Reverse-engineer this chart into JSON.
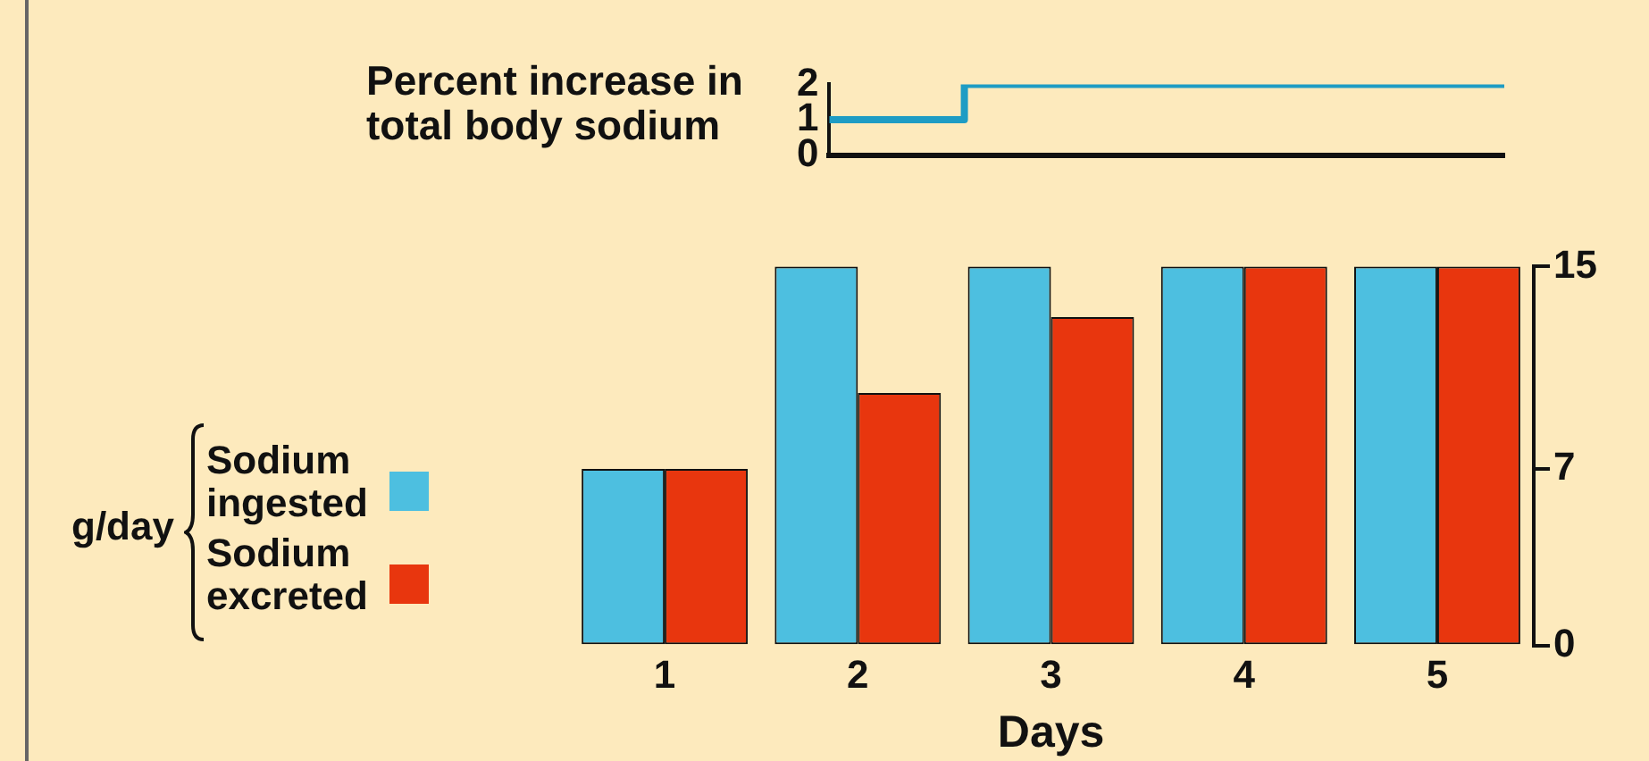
{
  "chart_data": [
    {
      "type": "step",
      "ylabel": "Percent increase in total body sodium",
      "categories": [
        null,
        null,
        null,
        null,
        null,
        null,
        null,
        null,
        null,
        null,
        null
      ],
      "series": [
        {
          "color": "#1e9cc4",
          "values": [
            1,
            1,
            1,
            2,
            2,
            2,
            2,
            2,
            2,
            2,
            2
          ]
        }
      ],
      "ylim": [
        0,
        2
      ],
      "yticks": [
        0,
        1,
        2
      ],
      "tick_labels": "y",
      "grid": false,
      "marker": "none",
      "line_style": "solid"
    },
    {
      "type": "bar",
      "xlabel": "Days",
      "ylabel": "g/day",
      "categories": [
        "1",
        "2",
        "3",
        "4",
        "5"
      ],
      "series": [
        {
          "name": "Sodium ingested",
          "color": "#4dbfe0",
          "values": [
            7,
            15,
            15,
            15,
            15
          ]
        },
        {
          "name": "Sodium excreted",
          "color": "#e8360e",
          "values": [
            7,
            10,
            13,
            15,
            15
          ]
        }
      ],
      "ylim": [
        0,
        15
      ],
      "yticks": [
        0,
        7,
        15
      ],
      "grid": false,
      "legend": "left"
    }
  ]
}
